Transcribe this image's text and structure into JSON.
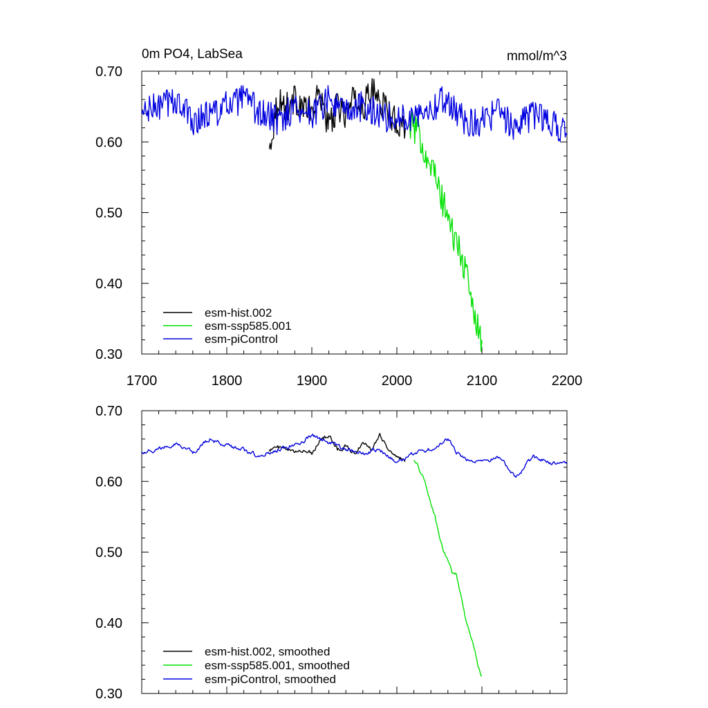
{
  "chart_data": [
    {
      "type": "line",
      "title_left": "0m PO4, LabSea",
      "title_right": "mmol/m^3",
      "xlim": [
        1700,
        2200
      ],
      "ylim": [
        0.3,
        0.7
      ],
      "x_ticks": [
        "1700",
        "1800",
        "1900",
        "2000",
        "2100",
        "2200"
      ],
      "y_ticks": [
        "0.30",
        "0.40",
        "0.50",
        "0.60",
        "0.70"
      ],
      "legend_position": "bottom-left",
      "series": [
        {
          "name": "esm-hist.002",
          "color": "#000000",
          "x": [
            1850,
            1860,
            1870,
            1880,
            1890,
            1900,
            1910,
            1920,
            1930,
            1940,
            1950,
            1960,
            1970,
            1980,
            1990,
            2000,
            2010
          ],
          "y": [
            0.59,
            0.66,
            0.65,
            0.66,
            0.65,
            0.64,
            0.67,
            0.62,
            0.65,
            0.64,
            0.66,
            0.65,
            0.67,
            0.66,
            0.64,
            0.63,
            0.62
          ]
        },
        {
          "name": "esm-ssp585.001",
          "color": "#00e000",
          "x": [
            2015,
            2020,
            2025,
            2030,
            2035,
            2040,
            2045,
            2050,
            2055,
            2060,
            2065,
            2070,
            2075,
            2080,
            2085,
            2090,
            2095,
            2100
          ],
          "y": [
            0.625,
            0.62,
            0.61,
            0.6,
            0.58,
            0.57,
            0.55,
            0.53,
            0.51,
            0.5,
            0.47,
            0.46,
            0.44,
            0.42,
            0.39,
            0.37,
            0.34,
            0.32
          ]
        },
        {
          "name": "esm-piControl",
          "color": "#0000e0",
          "x": [
            1700,
            1720,
            1740,
            1760,
            1780,
            1800,
            1820,
            1840,
            1860,
            1880,
            1900,
            1920,
            1940,
            1960,
            1980,
            2000,
            2020,
            2040,
            2060,
            2080,
            2100,
            2120,
            2140,
            2160,
            2180,
            2200
          ],
          "y": [
            0.64,
            0.65,
            0.66,
            0.63,
            0.64,
            0.65,
            0.66,
            0.64,
            0.63,
            0.65,
            0.64,
            0.66,
            0.64,
            0.65,
            0.64,
            0.63,
            0.64,
            0.65,
            0.66,
            0.63,
            0.63,
            0.64,
            0.62,
            0.64,
            0.63,
            0.61
          ]
        }
      ]
    },
    {
      "type": "line",
      "xlim": [
        1700,
        2200
      ],
      "ylim": [
        0.3,
        0.7
      ],
      "y_ticks": [
        "0.30",
        "0.40",
        "0.50",
        "0.60",
        "0.70"
      ],
      "legend_position": "bottom-left",
      "series": [
        {
          "name": "esm-hist.002, smoothed",
          "color": "#000000",
          "x": [
            1850,
            1860,
            1870,
            1880,
            1890,
            1900,
            1910,
            1920,
            1930,
            1940,
            1950,
            1960,
            1970,
            1980,
            1990,
            2000,
            2010
          ],
          "y": [
            0.645,
            0.648,
            0.645,
            0.64,
            0.645,
            0.64,
            0.66,
            0.665,
            0.645,
            0.65,
            0.64,
            0.655,
            0.645,
            0.668,
            0.645,
            0.635,
            0.628
          ]
        },
        {
          "name": "esm-ssp585.001, smoothed",
          "color": "#00e000",
          "x": [
            2020,
            2025,
            2030,
            2035,
            2040,
            2045,
            2050,
            2055,
            2060,
            2065,
            2070,
            2075,
            2080,
            2085,
            2090,
            2095,
            2100
          ],
          "y": [
            0.63,
            0.62,
            0.61,
            0.59,
            0.57,
            0.55,
            0.52,
            0.5,
            0.49,
            0.47,
            0.47,
            0.44,
            0.41,
            0.39,
            0.37,
            0.34,
            0.325
          ]
        },
        {
          "name": "esm-piControl, smoothed",
          "color": "#0000e0",
          "x": [
            1700,
            1720,
            1740,
            1760,
            1780,
            1800,
            1820,
            1840,
            1860,
            1880,
            1900,
            1920,
            1940,
            1960,
            1980,
            2000,
            2020,
            2040,
            2060,
            2070,
            2080,
            2100,
            2120,
            2140,
            2160,
            2180,
            2200
          ],
          "y": [
            0.642,
            0.645,
            0.655,
            0.64,
            0.66,
            0.65,
            0.645,
            0.635,
            0.645,
            0.65,
            0.665,
            0.655,
            0.645,
            0.64,
            0.645,
            0.625,
            0.64,
            0.645,
            0.66,
            0.64,
            0.63,
            0.628,
            0.635,
            0.605,
            0.635,
            0.625,
            0.625
          ]
        }
      ]
    }
  ]
}
